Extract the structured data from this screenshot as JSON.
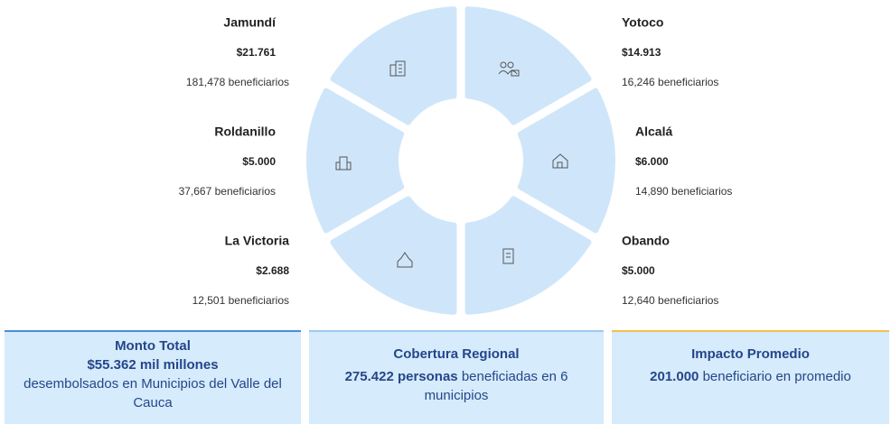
{
  "municipalities": [
    {
      "name": "Jamundí",
      "amount": "$21.761",
      "beneficiaries": "181,478 beneficiarios"
    },
    {
      "name": "Yotoco",
      "amount": "$14.913",
      "beneficiaries": "16,246 beneficiarios"
    },
    {
      "name": "Roldanillo",
      "amount": "$5.000",
      "beneficiaries": "37,667 beneficiarios"
    },
    {
      "name": "Alcalá",
      "amount": "$6.000",
      "beneficiaries": "14,890 beneficiarios"
    },
    {
      "name": "La Victoria",
      "amount": "$2.688",
      "beneficiaries": "12,501 beneficiarios"
    },
    {
      "name": "Obando",
      "amount": "$5.000",
      "beneficiaries": "12,640 beneficiarios"
    }
  ],
  "cards": [
    {
      "title": "Monto Total",
      "highlight": "$55.362 mil millones",
      "text": "desembolsados en Municipios del Valle del Cauca"
    },
    {
      "title": "Cobertura Regional",
      "highlight": "275.422 personas",
      "text": "beneficiadas en 6 municipios"
    },
    {
      "title": "Impacto Promedio",
      "highlight": "201.000",
      "text": "beneficiario en promedio"
    }
  ]
}
